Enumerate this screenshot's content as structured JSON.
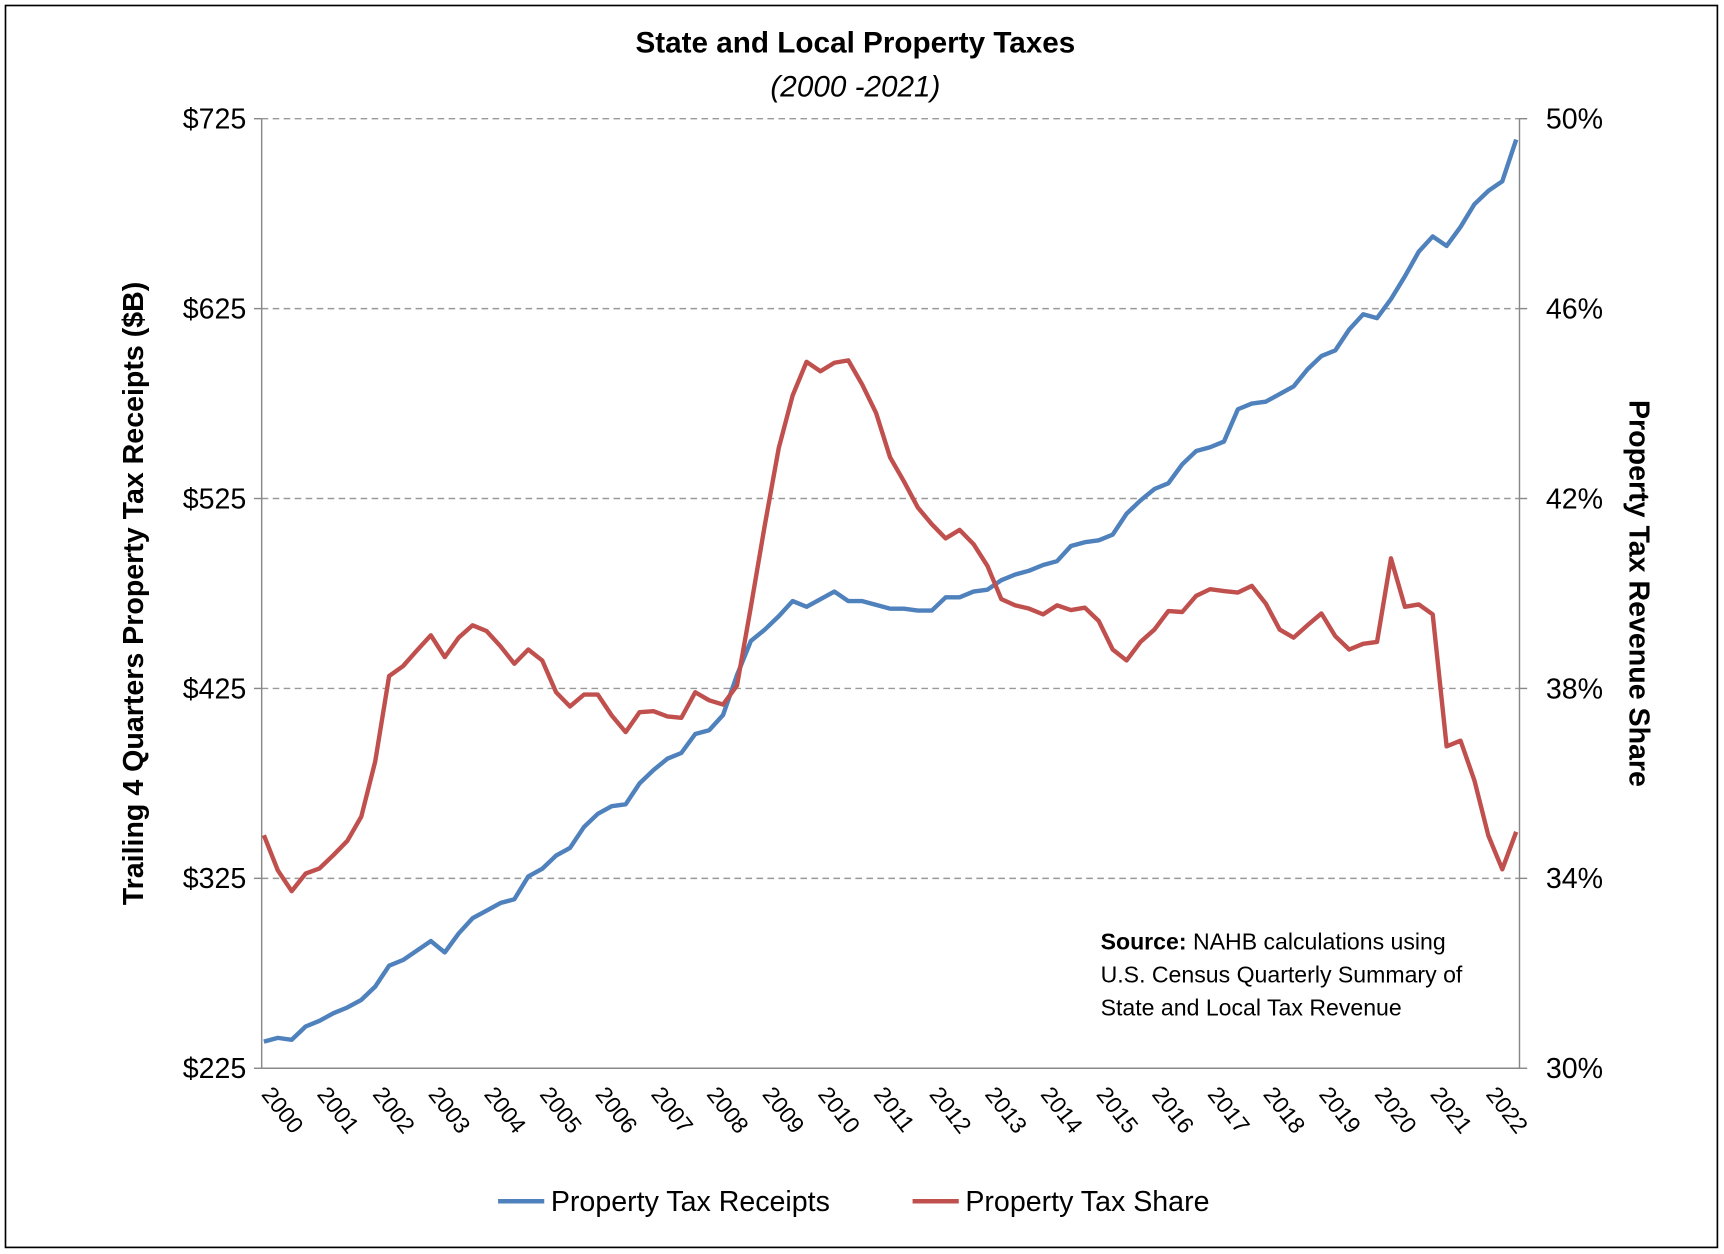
{
  "chart_data": {
    "type": "line",
    "title": "State and Local Property Taxes",
    "subtitle": "(2000 -2021)",
    "y_label": "Trailing 4 Quarters Property Tax Receipts ($B)",
    "y2_label": "Property Tax Revenue Share",
    "annotation": {
      "label": "Source:",
      "lines": [
        " NAHB calculations using",
        "U.S. Census Quarterly Summary of",
        "State and Local Tax Revenue"
      ]
    },
    "categories": [
      "2000",
      null,
      null,
      null,
      "2001",
      null,
      null,
      null,
      "2002",
      null,
      null,
      null,
      "2003",
      null,
      null,
      null,
      "2004",
      null,
      null,
      null,
      "2005",
      null,
      null,
      null,
      "2006",
      null,
      null,
      null,
      "2007",
      null,
      null,
      null,
      "2008",
      null,
      null,
      null,
      "2009",
      null,
      null,
      null,
      "2010",
      null,
      null,
      null,
      "2011",
      null,
      null,
      null,
      "2012",
      null,
      null,
      null,
      "2013",
      null,
      null,
      null,
      "2014",
      null,
      null,
      null,
      "2015",
      null,
      null,
      null,
      "2016",
      null,
      null,
      null,
      "2017",
      null,
      null,
      null,
      "2018",
      null,
      null,
      null,
      "2019",
      null,
      null,
      null,
      "2020",
      null,
      null,
      null,
      "2021",
      null,
      null,
      null,
      "2022",
      null,
      null
    ],
    "series": [
      {
        "name": "Property Tax Receipts",
        "color": "#4f81bd",
        "axis": "y",
        "values": [
          239,
          241,
          240,
          247,
          250,
          254,
          257,
          261,
          268,
          279,
          282,
          287,
          292,
          286,
          296,
          304,
          308,
          312,
          314,
          326,
          330,
          337,
          341,
          352,
          359,
          363,
          364,
          375,
          382,
          388,
          391,
          401,
          403,
          411,
          432,
          450,
          456,
          463,
          471,
          468,
          472,
          476,
          471,
          471,
          469,
          467,
          467,
          466,
          466,
          473,
          473,
          476,
          477,
          482,
          485,
          487,
          490,
          492,
          500,
          502,
          503,
          506,
          517,
          524,
          530,
          533,
          543,
          550,
          552,
          555,
          572,
          575,
          576,
          580,
          584,
          593,
          600,
          603,
          614,
          622,
          620,
          630,
          642,
          655,
          663,
          658,
          668,
          680,
          687,
          692,
          714
        ]
      },
      {
        "name": "Property Tax Share",
        "color": "#c0504d",
        "axis": "y2",
        "values": [
          34.91,
          34.17,
          33.73,
          34.1,
          34.21,
          34.49,
          34.79,
          35.3,
          36.46,
          38.26,
          38.47,
          38.8,
          39.12,
          38.66,
          39.07,
          39.33,
          39.21,
          38.89,
          38.52,
          38.82,
          38.59,
          37.92,
          37.62,
          37.87,
          37.87,
          37.43,
          37.08,
          37.5,
          37.52,
          37.41,
          37.38,
          37.92,
          37.75,
          37.66,
          38.06,
          39.72,
          41.44,
          43.06,
          44.17,
          44.88,
          44.68,
          44.86,
          44.91,
          44.4,
          43.8,
          42.87,
          42.36,
          41.81,
          41.46,
          41.16,
          41.34,
          41.04,
          40.58,
          39.88,
          39.75,
          39.68,
          39.56,
          39.75,
          39.65,
          39.7,
          39.42,
          38.82,
          38.59,
          38.98,
          39.24,
          39.63,
          39.61,
          39.95,
          40.09,
          40.05,
          40.02,
          40.16,
          39.79,
          39.24,
          39.07,
          39.33,
          39.58,
          39.1,
          38.82,
          38.94,
          38.98,
          40.74,
          39.72,
          39.77,
          39.56,
          36.78,
          36.9,
          36.06,
          34.9,
          34.19,
          34.98
        ]
      }
    ],
    "ylim": [
      225,
      725
    ],
    "yticks": [
      {
        "value": 225,
        "label": "$225"
      },
      {
        "value": 325,
        "label": "$325"
      },
      {
        "value": 425,
        "label": "$425"
      },
      {
        "value": 525,
        "label": "$525"
      },
      {
        "value": 625,
        "label": "$625"
      },
      {
        "value": 725,
        "label": "$725"
      }
    ],
    "y2lim": [
      30,
      50
    ],
    "y2ticks": [
      {
        "value": 30,
        "label": "30%"
      },
      {
        "value": 34,
        "label": "34%"
      },
      {
        "value": 38,
        "label": "38%"
      },
      {
        "value": 42,
        "label": "42%"
      },
      {
        "value": 46,
        "label": "46%"
      },
      {
        "value": 50,
        "label": "50%"
      }
    ],
    "grid": true,
    "legend": "bottom"
  }
}
